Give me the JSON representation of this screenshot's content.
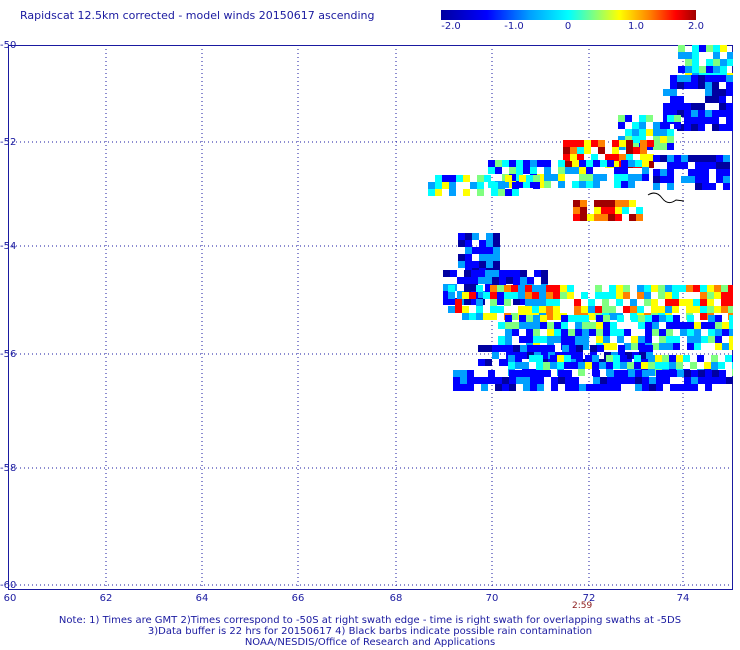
{
  "title": "Rapidscat 12.5km corrected - model winds 20150617 ascending",
  "colorbar": {
    "labels": [
      "-2.0",
      "-1.0",
      "0",
      "1.0",
      "2.0"
    ],
    "values": [
      -2.0,
      -1.0,
      0,
      1.0,
      2.0
    ],
    "colors": [
      "#0000a0",
      "#0000ff",
      "#00a0ff",
      "#00ffff",
      "#80ff80",
      "#ffff00",
      "#ff8000",
      "#ff0000",
      "#a00000"
    ]
  },
  "axes": {
    "y_labels": [
      "-50",
      "-52",
      "-54",
      "-56",
      "-58",
      "-60"
    ],
    "x_labels": [
      "60",
      "62",
      "64",
      "66",
      "68",
      "70",
      "72",
      "74"
    ],
    "lat_range": [
      -60,
      -50
    ],
    "lon_range": [
      60,
      75
    ],
    "grid": true,
    "grid_style": "dotted"
  },
  "time_label": "2:59",
  "notes": [
    "Note: 1) Times are GMT 2)Times correspond to -50S at right swath edge - time is right swath for overlapping swaths at -5DS",
    "3)Data buffer is 22 hrs for 20150617 4) Black barbs indicate possible rain contamination",
    "NOAA/NESDIS/Office of Research and Applications"
  ]
}
